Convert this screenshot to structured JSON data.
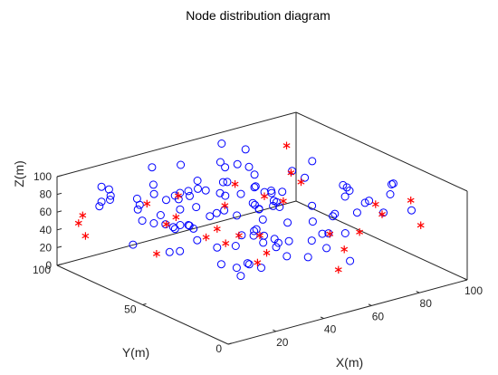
{
  "chart_data": {
    "type": "scatter",
    "title": "Node distribution diagram",
    "xlabel": "X(m)",
    "ylabel": "Y(m)",
    "zlabel": "Z(m)",
    "xlim": [
      0,
      100
    ],
    "ylim": [
      0,
      100
    ],
    "zlim": [
      0,
      100
    ],
    "xticks": [
      "20",
      "40",
      "60",
      "80",
      "100"
    ],
    "yticks": [
      "0",
      "50",
      "100"
    ],
    "zticks": [
      "0",
      "20",
      "40",
      "60",
      "80",
      "100"
    ],
    "grid": false,
    "projection": "3d",
    "series": [
      {
        "marker": "circle",
        "color": "#0000ff",
        "points": [
          [
            11,
            85,
            91
          ],
          [
            17,
            60,
            97
          ],
          [
            31,
            87,
            80
          ],
          [
            26,
            88,
            60
          ],
          [
            45,
            91,
            57
          ],
          [
            59,
            57,
            77
          ],
          [
            21,
            98,
            65
          ],
          [
            35,
            80,
            71
          ],
          [
            56,
            83,
            56
          ],
          [
            12,
            70,
            93
          ],
          [
            15,
            90,
            72
          ],
          [
            30,
            70,
            68
          ],
          [
            46,
            92,
            87
          ],
          [
            36,
            57,
            71
          ],
          [
            54,
            80,
            95
          ],
          [
            19,
            66,
            73
          ],
          [
            37,
            54,
            76
          ],
          [
            46,
            82,
            69
          ],
          [
            5,
            81,
            85
          ],
          [
            3,
            57,
            99
          ],
          [
            31,
            62,
            77
          ],
          [
            36,
            61,
            64
          ],
          [
            58,
            63,
            54
          ],
          [
            59,
            75,
            60
          ],
          [
            37,
            95,
            58
          ],
          [
            49,
            69,
            86
          ],
          [
            56,
            52,
            69
          ],
          [
            66,
            94,
            68
          ],
          [
            20,
            56,
            70
          ],
          [
            10,
            88,
            92
          ],
          [
            76,
            81,
            46
          ],
          [
            71,
            87,
            71
          ],
          [
            11,
            52,
            81
          ],
          [
            62,
            55,
            78
          ],
          [
            74,
            88,
            45
          ],
          [
            40,
            69,
            83
          ],
          [
            29,
            63,
            90
          ],
          [
            64,
            75,
            46
          ],
          [
            66,
            96,
            93
          ],
          [
            12,
            40,
            90
          ],
          [
            46,
            44,
            68
          ],
          [
            91,
            78,
            71
          ],
          [
            58,
            84,
            66
          ],
          [
            51,
            43,
            85
          ],
          [
            36,
            52,
            95
          ],
          [
            71,
            38,
            59
          ],
          [
            37,
            17,
            95
          ],
          [
            79,
            41,
            83
          ],
          [
            38,
            26,
            68
          ],
          [
            64,
            74,
            79
          ],
          [
            48,
            85,
            74
          ],
          [
            92,
            32,
            86
          ],
          [
            78,
            29,
            77
          ],
          [
            43,
            42,
            84
          ],
          [
            75,
            60,
            80
          ],
          [
            11,
            11,
            93
          ],
          [
            15,
            25,
            57
          ],
          [
            35,
            28,
            72
          ],
          [
            16,
            15,
            52
          ],
          [
            24,
            40,
            56
          ],
          [
            49,
            11,
            63
          ],
          [
            21,
            0,
            99
          ],
          [
            15,
            16,
            61
          ],
          [
            7,
            38,
            66
          ],
          [
            24,
            17,
            97
          ],
          [
            48,
            39,
            40
          ],
          [
            64,
            21,
            60
          ],
          [
            57,
            21,
            65
          ],
          [
            48,
            12,
            79
          ],
          [
            16,
            45,
            82
          ],
          [
            48,
            37,
            87
          ],
          [
            15,
            53,
            74
          ],
          [
            54,
            26,
            76
          ],
          [
            88,
            52,
            63
          ],
          [
            39,
            34,
            56
          ],
          [
            21,
            18,
            60
          ],
          [
            62,
            71,
            49
          ],
          [
            53,
            58,
            88
          ],
          [
            42,
            12,
            57
          ],
          [
            85,
            24,
            86
          ],
          [
            28,
            24,
            86
          ],
          [
            40,
            41,
            57
          ],
          [
            41,
            23,
            49
          ],
          [
            17,
            58,
            40
          ],
          [
            12,
            67,
            71
          ],
          [
            47,
            39,
            93
          ],
          [
            21,
            10,
            62
          ],
          [
            90,
            35,
            52
          ],
          [
            86,
            13,
            77
          ],
          [
            31,
            31,
            40
          ],
          [
            38,
            82,
            63
          ],
          [
            56,
            7,
            47
          ],
          [
            22,
            51,
            69
          ],
          [
            43,
            55,
            65
          ],
          [
            87,
            26,
            94
          ],
          [
            84,
            49,
            62
          ],
          [
            73,
            53,
            56
          ],
          [
            55,
            28,
            52
          ],
          [
            79,
            35,
            60
          ],
          [
            35,
            41,
            61
          ],
          [
            39,
            19,
            71
          ],
          [
            25,
            53,
            52
          ],
          [
            79,
            48,
            47
          ],
          [
            94,
            49,
            50
          ],
          [
            6,
            64,
            51
          ],
          [
            91,
            60,
            60
          ],
          [
            9,
            56,
            80
          ],
          [
            20,
            59,
            63
          ],
          [
            74,
            66,
            83
          ],
          [
            12,
            92,
            65
          ],
          [
            69,
            91,
            72
          ],
          [
            51,
            50,
            90
          ],
          [
            34,
            92,
            93
          ],
          [
            32,
            68,
            89
          ],
          [
            71,
            89,
            89
          ]
        ]
      },
      {
        "marker": "asterisk",
        "color": "#ff0000",
        "points": [
          [
            10,
            99,
            50
          ],
          [
            81,
            79,
            95
          ],
          [
            24,
            81,
            69
          ],
          [
            45,
            92,
            53
          ],
          [
            61,
            53,
            70
          ],
          [
            19,
            28,
            75
          ],
          [
            28,
            52,
            54
          ],
          [
            9,
            100,
            41
          ],
          [
            72,
            58,
            79
          ],
          [
            29,
            71,
            59
          ],
          [
            58,
            77,
            70
          ],
          [
            25,
            71,
            54
          ],
          [
            34,
            25,
            56
          ],
          [
            23,
            15,
            62
          ],
          [
            24,
            40,
            77
          ],
          [
            43,
            62,
            70
          ],
          [
            70,
            21,
            57
          ],
          [
            29,
            22,
            82
          ],
          [
            71,
            78,
            46
          ],
          [
            55,
            9,
            59
          ],
          [
            26,
            30,
            77
          ],
          [
            8,
            53,
            49
          ],
          [
            54,
            11,
            35
          ],
          [
            90,
            89,
            49
          ],
          [
            87,
            9,
            63
          ],
          [
            90,
            19,
            80
          ],
          [
            81,
            27,
            75
          ],
          [
            78,
            19,
            73
          ],
          [
            4,
            89,
            40
          ],
          [
            59,
            23,
            61
          ]
        ]
      }
    ]
  }
}
